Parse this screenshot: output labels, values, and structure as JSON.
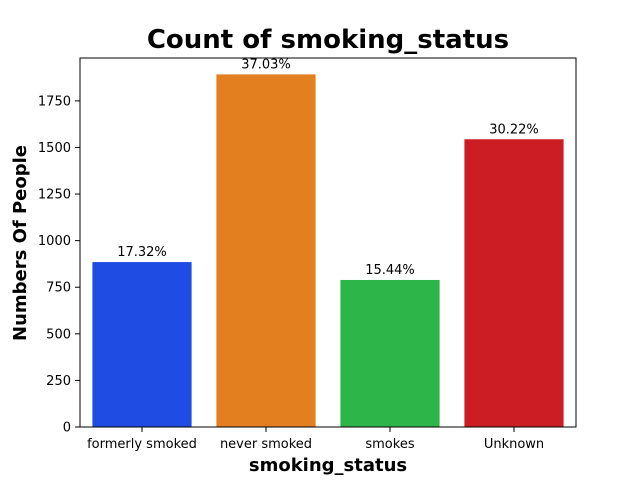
{
  "chart_data": {
    "type": "bar",
    "title": "Count of smoking_status",
    "xlabel": "smoking_status",
    "ylabel": "Numbers Of People",
    "categories": [
      "formerly smoked",
      "never smoked",
      "smokes",
      "Unknown"
    ],
    "values": [
      885,
      1892,
      789,
      1544
    ],
    "data_labels": [
      "17.32%",
      "37.03%",
      "15.44%",
      "30.22%"
    ],
    "colors": [
      "#1f4de3",
      "#e37f1f",
      "#2eb54a",
      "#cc1c24"
    ],
    "ylim": [
      0,
      1980
    ],
    "yticks": [
      0,
      250,
      500,
      750,
      1000,
      1250,
      1500,
      1750
    ],
    "grid": false,
    "legend": "none"
  }
}
